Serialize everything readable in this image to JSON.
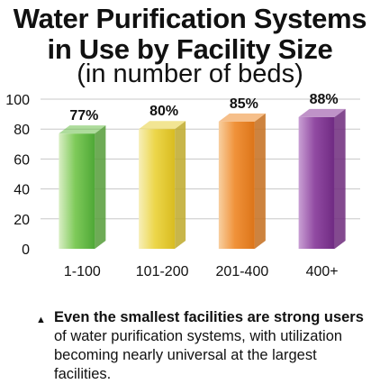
{
  "header": {
    "title_line1": "Water Purification Systems",
    "title_line2": "in Use by Facility Size",
    "subtitle": "(in number of beds)"
  },
  "chart_data": {
    "type": "bar",
    "title": "Water Purification Systems in Use by Facility Size",
    "subtitle": "(in number of beds)",
    "xlabel": "",
    "ylabel": "",
    "categories": [
      "1-100",
      "101-200",
      "201-400",
      "400+"
    ],
    "values": [
      77,
      80,
      85,
      88
    ],
    "data_labels": [
      "77%",
      "80%",
      "85%",
      "88%"
    ],
    "yticks": [
      "0",
      "20",
      "40",
      "60",
      "80",
      "100"
    ],
    "ylim": [
      0,
      100
    ],
    "grid": true,
    "bar_colors": [
      "#6cc04a",
      "#e8cf3a",
      "#ef8a2a",
      "#8a3a9a"
    ],
    "style": "3d-columns"
  },
  "note": {
    "bullet": "▲",
    "bold_text": "Even the smallest facilities are strong users",
    "rest_text": " of water purification systems, with utilization becoming nearly universal at the largest facilities."
  }
}
